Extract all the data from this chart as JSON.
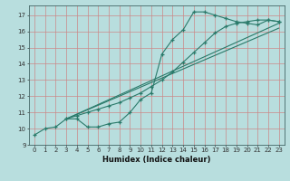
{
  "xlabel": "Humidex (Indice chaleur)",
  "bg_color": "#b8dede",
  "grid_color": "#cc8888",
  "line_color": "#2a7a6a",
  "xlim": [
    -0.5,
    23.5
  ],
  "ylim": [
    9.0,
    17.6
  ],
  "xticks": [
    0,
    1,
    2,
    3,
    4,
    5,
    6,
    7,
    8,
    9,
    10,
    11,
    12,
    13,
    14,
    15,
    16,
    17,
    18,
    19,
    20,
    21,
    22,
    23
  ],
  "yticks": [
    9,
    10,
    11,
    12,
    13,
    14,
    15,
    16,
    17
  ],
  "line1_x": [
    0,
    1,
    2,
    3,
    4,
    5,
    6,
    7,
    8,
    9,
    10,
    11,
    12,
    13,
    14,
    15,
    16,
    17,
    18,
    19,
    20,
    21,
    22,
    23
  ],
  "line1_y": [
    9.6,
    10.0,
    10.1,
    10.6,
    10.6,
    10.1,
    10.1,
    10.3,
    10.4,
    11.0,
    11.8,
    12.2,
    14.6,
    15.5,
    16.1,
    17.2,
    17.2,
    17.0,
    16.8,
    16.6,
    16.5,
    16.4,
    16.7,
    16.6
  ],
  "line2_x": [
    3,
    4,
    5,
    6,
    7,
    8,
    9,
    10,
    11,
    12,
    13,
    14,
    15,
    16,
    17,
    18,
    19,
    20,
    21,
    22,
    23
  ],
  "line2_y": [
    10.6,
    10.8,
    11.0,
    11.2,
    11.4,
    11.6,
    11.9,
    12.2,
    12.6,
    13.0,
    13.5,
    14.1,
    14.7,
    15.3,
    15.9,
    16.3,
    16.5,
    16.6,
    16.7,
    16.7,
    16.6
  ],
  "line3_x": [
    3,
    23
  ],
  "line3_y": [
    10.6,
    16.2
  ],
  "line4_x": [
    3,
    23
  ],
  "line4_y": [
    10.6,
    16.5
  ]
}
